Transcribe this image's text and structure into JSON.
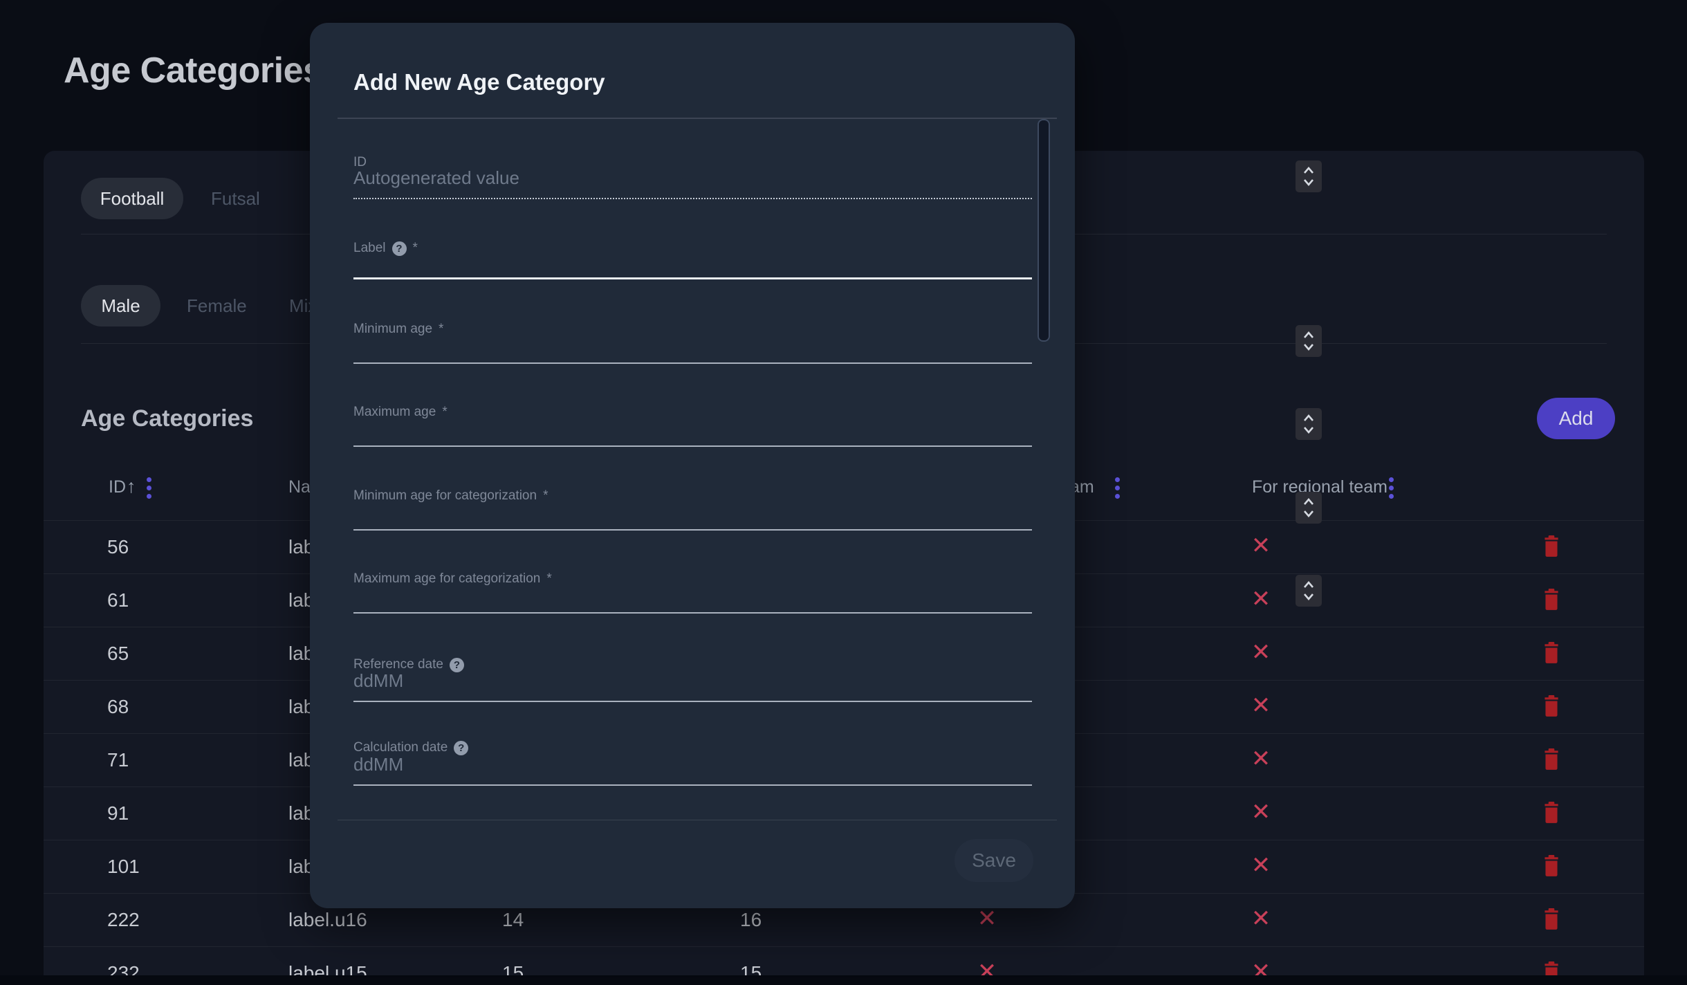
{
  "page": {
    "title": "Age Categories"
  },
  "card": {
    "sport_tabs": [
      {
        "label": "Football"
      },
      {
        "label": "Futsal"
      }
    ],
    "gender_tabs": [
      {
        "label": "Male"
      },
      {
        "label": "Female"
      },
      {
        "label": "Mix"
      }
    ],
    "section_title": "Age Categories",
    "add_button_label": "Add",
    "table": {
      "header": {
        "id": "ID",
        "sort_arrow": "↑",
        "name_fragment": "Nam",
        "hidden_column_fragment": "am",
        "regional": "For regional team"
      },
      "rows": [
        {
          "id": "56",
          "name": "lab",
          "min": "",
          "max": "",
          "national": "",
          "regional": "✕"
        },
        {
          "id": "61",
          "name": "lab",
          "min": "",
          "max": "",
          "national": "",
          "regional": "✕"
        },
        {
          "id": "65",
          "name": "lab",
          "min": "",
          "max": "",
          "national": "",
          "regional": "✕"
        },
        {
          "id": "68",
          "name": "lab",
          "min": "",
          "max": "",
          "national": "",
          "regional": "✕"
        },
        {
          "id": "71",
          "name": "lab",
          "min": "",
          "max": "",
          "national": "",
          "regional": "✕"
        },
        {
          "id": "91",
          "name": "lab",
          "min": "",
          "max": "",
          "national": "",
          "regional": "✕"
        },
        {
          "id": "101",
          "name": "lab",
          "min": "",
          "max": "",
          "national": "",
          "regional": "✕"
        },
        {
          "id": "222",
          "name": "label.u16",
          "min": "14",
          "max": "16",
          "national": "✕",
          "regional": "✕"
        },
        {
          "id": "232",
          "name": "label.u15",
          "min": "15",
          "max": "15",
          "national": "✕",
          "regional": "✕"
        }
      ]
    }
  },
  "modal": {
    "title": "Add New Age Category",
    "fields": [
      {
        "label": "ID",
        "placeholder": "Autogenerated value",
        "required": false,
        "help": false,
        "spinner": true,
        "state": "disabled"
      },
      {
        "label": "Label",
        "placeholder": "",
        "required": true,
        "help": true,
        "spinner": false,
        "state": "focused"
      },
      {
        "label": "Minimum age",
        "placeholder": "",
        "required": true,
        "help": false,
        "spinner": true,
        "state": "normal"
      },
      {
        "label": "Maximum age",
        "placeholder": "",
        "required": true,
        "help": false,
        "spinner": true,
        "state": "normal"
      },
      {
        "label": "Minimum age for categorization",
        "placeholder": "",
        "required": true,
        "help": false,
        "spinner": true,
        "state": "normal"
      },
      {
        "label": "Maximum age for categorization",
        "placeholder": "",
        "required": true,
        "help": false,
        "spinner": true,
        "state": "normal"
      },
      {
        "label": "Reference date",
        "placeholder": "ddMM",
        "required": false,
        "help": true,
        "spinner": false,
        "state": "normal"
      },
      {
        "label": "Calculation date",
        "placeholder": "ddMM",
        "required": false,
        "help": true,
        "spinner": false,
        "state": "normal"
      }
    ],
    "save_button_label": "Save"
  },
  "colors": {
    "accent_indigo": "#4c3fc4",
    "menu_dots_purple": "#5b51d8",
    "cross_rose": "#c84059",
    "trash_red": "#a81f24"
  }
}
